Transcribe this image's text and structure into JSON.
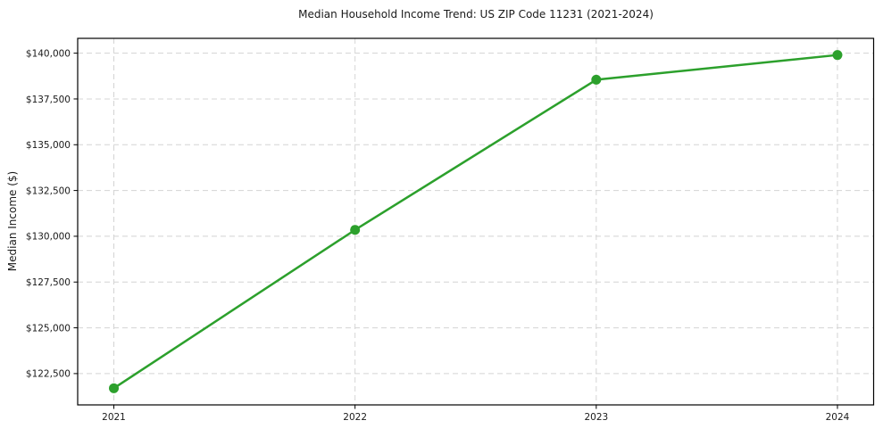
{
  "chart_data": {
    "type": "line",
    "title": "Median Household Income Trend: US ZIP Code 11231 (2021-2024)",
    "xlabel": "",
    "ylabel": "Median Income ($)",
    "x": [
      2021,
      2022,
      2023,
      2024
    ],
    "xtick_labels": [
      "2021",
      "2022",
      "2023",
      "2024"
    ],
    "series": [
      {
        "name": "Median household income",
        "values": [
          121700,
          130350,
          138550,
          139900
        ]
      }
    ],
    "yticks": [
      122500,
      125000,
      127500,
      130000,
      132500,
      135000,
      137500,
      140000
    ],
    "ytick_labels": [
      "$122,500",
      "$125,000",
      "$127,500",
      "$130,000",
      "$132,500",
      "$135,000",
      "$137,500",
      "$140,000"
    ],
    "xlim": [
      2020.85,
      2024.15
    ],
    "ylim": [
      120790,
      140810
    ],
    "grid": true,
    "grid_style": "dashed",
    "legend": "none",
    "line_color": "#2ca02c",
    "marker": "circle",
    "marker_size": 5.5,
    "grid_color": "#d4d4d4",
    "axis_color": "#000000",
    "text_color": "#1a1a1a",
    "background_color": "#ffffff"
  }
}
